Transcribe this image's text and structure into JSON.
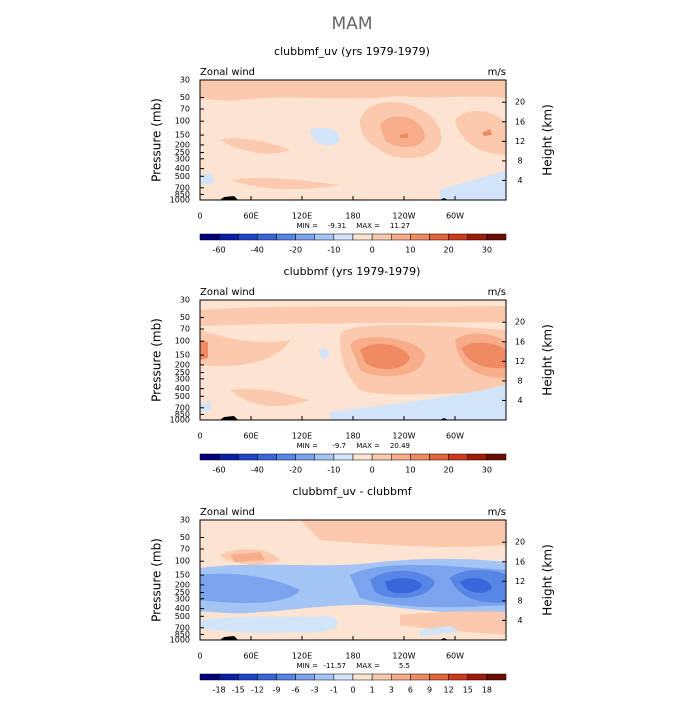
{
  "title": "MAM",
  "y_label": "Pressure (mb)",
  "y2_label": "Height (km)",
  "pressure_ticks": [
    30,
    50,
    70,
    100,
    150,
    200,
    250,
    300,
    400,
    500,
    700,
    850,
    1000
  ],
  "height_ticks": [
    4,
    8,
    12,
    16,
    20
  ],
  "x_ticks": [
    "0",
    "60E",
    "120E",
    "180",
    "120W",
    "60W"
  ],
  "panels": [
    {
      "title": "clubbmf_uv (yrs 1979-1979)",
      "left_label": "Zonal wind",
      "units": "m/s",
      "min_label": "MIN =",
      "min": -9.31,
      "max_label": "MAX =",
      "max": 11.27,
      "colorbar_labels": [
        -60,
        -40,
        -20,
        -10,
        0,
        10,
        20,
        30
      ]
    },
    {
      "title": "clubbmf (yrs 1979-1979)",
      "left_label": "Zonal wind",
      "units": "m/s",
      "min_label": "MIN =",
      "min": -9.7,
      "max_label": "MAX =",
      "max": 20.49,
      "colorbar_labels": [
        -60,
        -40,
        -20,
        -10,
        0,
        10,
        20,
        30
      ]
    },
    {
      "title": "clubbmf_uv - clubbmf",
      "left_label": "Zonal wind",
      "units": "m/s",
      "min_label": "MIN =",
      "min": -11.57,
      "max_label": "MAX =",
      "max": 5.5,
      "colorbar_labels": [
        -18,
        -15,
        -12,
        -9,
        -6,
        -3,
        -1,
        0,
        1,
        3,
        6,
        9,
        12,
        15,
        18
      ]
    }
  ],
  "colors": [
    "#00007a",
    "#0a1ea8",
    "#1f44c8",
    "#3a66dc",
    "#5886e6",
    "#7ca4ee",
    "#a4c4f6",
    "#d2e4fa",
    "#fde4d2",
    "#fbcaae",
    "#f7ac8a",
    "#f08a62",
    "#e6623a",
    "#cc3a1a",
    "#a01a08",
    "#6a0c00"
  ]
}
